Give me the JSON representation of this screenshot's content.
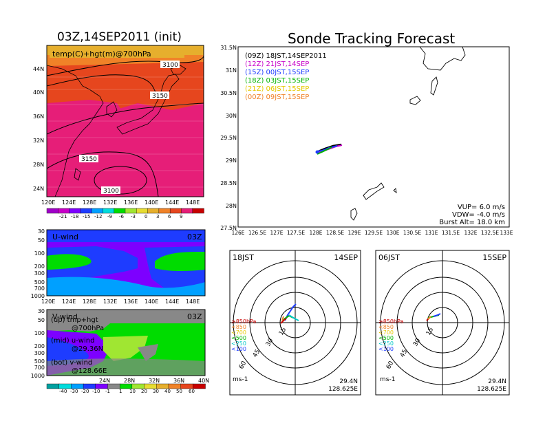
{
  "init_panel": {
    "title": "03Z,14SEP2011 (init)",
    "field_label": "temp(C)+hgt(m)@700hPa",
    "lat_ticks": [
      "44N",
      "40N",
      "36N",
      "32N",
      "28N",
      "24N"
    ],
    "lon_ticks": [
      "120E",
      "124E",
      "128E",
      "132E",
      "136E",
      "140E",
      "144E",
      "148E"
    ],
    "contour_labels": [
      "3100",
      "3150",
      "3150",
      "3100"
    ],
    "colorbar_labels": [
      "-21",
      "-18",
      "-15",
      "-12",
      "-9",
      "-6",
      "-3",
      "0",
      "3",
      "6",
      "9"
    ],
    "colors": [
      "#a000c8",
      "#c800c8",
      "#7d00ff",
      "#1e3cff",
      "#00a0ff",
      "#00dcdc",
      "#00dc00",
      "#a0e632",
      "#e6dc32",
      "#e6af2d",
      "#f08228",
      "#e6461e",
      "#e61e78",
      "#c80000"
    ]
  },
  "u_panel": {
    "label": "U-wind",
    "time": "03Z",
    "p_ticks": [
      "30",
      "50",
      "100",
      "200",
      "300",
      "500",
      "700",
      "1000"
    ],
    "lon_ticks": [
      "120E",
      "124E",
      "128E",
      "132E",
      "136E",
      "140E",
      "144E",
      "148E"
    ]
  },
  "v_panel": {
    "label": "V-wind",
    "time": "03Z",
    "p_ticks": [
      "30",
      "50",
      "100",
      "200",
      "300",
      "500",
      "700",
      "1000"
    ],
    "lat_ticks": [
      "24N",
      "28N",
      "32N",
      "36N",
      "40N"
    ],
    "colorbar_labels": [
      "-40",
      "-30",
      "-20",
      "-10",
      "-1",
      "1",
      "10",
      "20",
      "30",
      "40",
      "50",
      "60"
    ]
  },
  "notes": [
    {
      "line1": "(up) tmp+hgt",
      "line2": "@700hPa"
    },
    {
      "line1": "(mid) u-wind",
      "line2": "@29.36N"
    },
    {
      "line1": "(bot) v-wind",
      "line2": "@128.66E"
    }
  ],
  "track_panel": {
    "title": "Sonde Tracking Forecast",
    "lat_ticks": [
      "31.5N",
      "31N",
      "30.5N",
      "30N",
      "29.5N",
      "29N",
      "28.5N",
      "28N",
      "27.5N"
    ],
    "lon_ticks": [
      "126E",
      "126.5E",
      "127E",
      "127.5E",
      "128E",
      "128.5E",
      "129E",
      "129.5E",
      "130E",
      "130.5E",
      "131E",
      "131.5E",
      "132E",
      "132.5E",
      "133E"
    ],
    "legend": [
      {
        "text": "(09Z)  18JST,14SEP2011",
        "color": "#000000"
      },
      {
        "text": "(12Z)  21JST,14SEP",
        "color": "#c800c8"
      },
      {
        "text": "(15Z)  00JST,15SEP",
        "color": "#1e3cff"
      },
      {
        "text": "(18Z)  03JST,15SEP",
        "color": "#00b400"
      },
      {
        "text": "(21Z)  06JST,15SEP",
        "color": "#e6c800"
      },
      {
        "text": "(00Z)  09JST,15SEP",
        "color": "#f08228"
      }
    ],
    "params": [
      "VUP=  6.0  m/s",
      "VDW=  -4.0  m/s",
      "Burst Alt=  18.0  km"
    ]
  },
  "polar_left": {
    "time": "18JST",
    "date": "14SEP",
    "ring_labels": [
      "15",
      "30",
      "45",
      "60"
    ],
    "unit": "ms-1",
    "lat": "29.4N",
    "lon": "128.625E",
    "levels": [
      {
        "text": "≥850hPa",
        "color": "#c80000"
      },
      {
        "text": "<850",
        "color": "#f08228"
      },
      {
        "text": "<700",
        "color": "#e6c800"
      },
      {
        "text": "<500",
        "color": "#00b400"
      },
      {
        "text": "<250",
        "color": "#00c8c8"
      },
      {
        "text": "<100",
        "color": "#1e3cff"
      }
    ]
  },
  "polar_right": {
    "time": "06JST",
    "date": "15SEP",
    "ring_labels": [
      "15",
      "30",
      "45",
      "60"
    ],
    "unit": "ms-1",
    "lat": "29.4N",
    "lon": "128.625E",
    "levels": [
      {
        "text": "≥850hPa",
        "color": "#c80000"
      },
      {
        "text": "<850",
        "color": "#f08228"
      },
      {
        "text": "<700",
        "color": "#e6c800"
      },
      {
        "text": "<500",
        "color": "#00b400"
      },
      {
        "text": "<250",
        "color": "#00c8c8"
      },
      {
        "text": "<100",
        "color": "#1e3cff"
      }
    ]
  }
}
